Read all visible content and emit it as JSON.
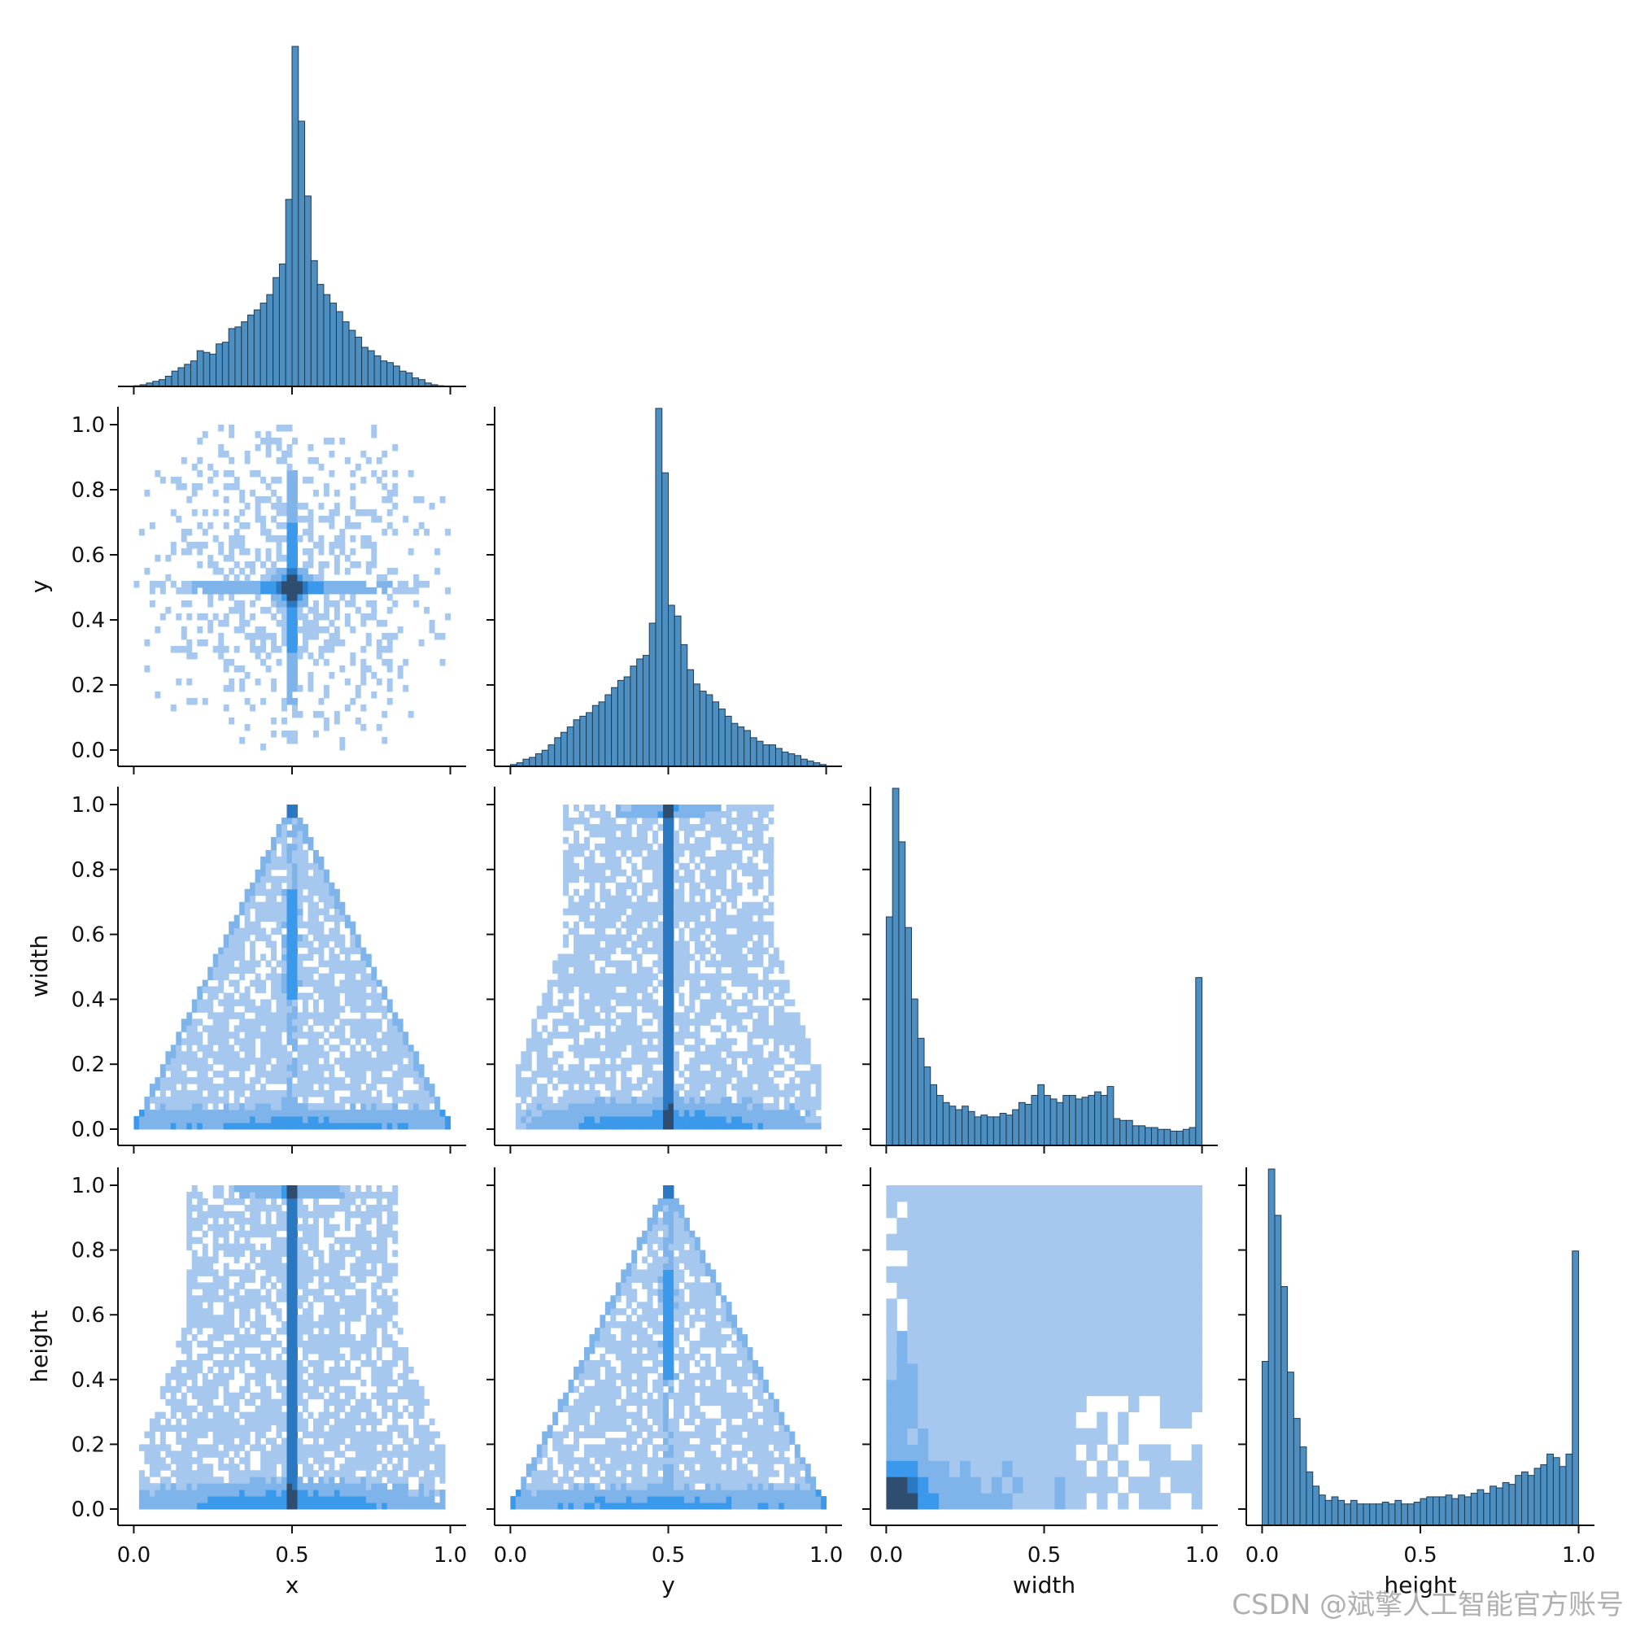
{
  "colors": {
    "bar_fill": "#4c8fc0",
    "bar_edge": "#1f3b55",
    "heat_light": "#a6c8ef",
    "heat_mid": "#3a99ea",
    "heat_dark": "#2f4d6e",
    "axis": "#111111"
  },
  "watermark": "CSDN @斌擎人工智能官方账号",
  "chart_data": {
    "type": "pairplot",
    "corner": true,
    "variables": [
      "x",
      "y",
      "width",
      "height"
    ],
    "axis_labels": {
      "x": "x",
      "y": "y",
      "width": "width",
      "height": "height"
    },
    "xlim": [
      -0.05,
      1.05
    ],
    "tick_values": [
      0.0,
      0.5,
      1.0
    ],
    "tick_labels": [
      "0.0",
      "0.5",
      "1.0"
    ],
    "ytick_values": [
      0.0,
      0.2,
      0.4,
      0.6,
      0.8,
      1.0
    ],
    "ytick_labels": [
      "0.0",
      "0.2",
      "0.4",
      "0.6",
      "0.8",
      "1.0"
    ],
    "diagonal_histograms": {
      "x": {
        "bins": 50,
        "relative_counts": [
          0.002,
          0.005,
          0.01,
          0.015,
          0.02,
          0.03,
          0.045,
          0.055,
          0.065,
          0.075,
          0.105,
          0.1,
          0.095,
          0.125,
          0.13,
          0.17,
          0.175,
          0.19,
          0.21,
          0.225,
          0.245,
          0.27,
          0.32,
          0.36,
          0.55,
          1.0,
          0.78,
          0.56,
          0.37,
          0.3,
          0.27,
          0.245,
          0.22,
          0.19,
          0.165,
          0.145,
          0.115,
          0.105,
          0.09,
          0.075,
          0.07,
          0.06,
          0.045,
          0.04,
          0.025,
          0.02,
          0.01,
          0.005,
          0.002,
          0.001
        ]
      },
      "y": {
        "bins": 50,
        "relative_counts": [
          0.005,
          0.01,
          0.02,
          0.025,
          0.035,
          0.045,
          0.06,
          0.08,
          0.095,
          0.11,
          0.13,
          0.14,
          0.15,
          0.17,
          0.18,
          0.2,
          0.22,
          0.24,
          0.25,
          0.28,
          0.3,
          0.31,
          0.4,
          1.0,
          0.82,
          0.45,
          0.42,
          0.34,
          0.27,
          0.23,
          0.21,
          0.2,
          0.18,
          0.16,
          0.14,
          0.12,
          0.11,
          0.1,
          0.08,
          0.07,
          0.06,
          0.06,
          0.05,
          0.04,
          0.035,
          0.03,
          0.02,
          0.015,
          0.01,
          0.005
        ]
      },
      "width": {
        "bins": 50,
        "relative_counts": [
          0.64,
          1.0,
          0.85,
          0.61,
          0.41,
          0.3,
          0.22,
          0.17,
          0.14,
          0.12,
          0.11,
          0.1,
          0.11,
          0.095,
          0.08,
          0.085,
          0.08,
          0.08,
          0.09,
          0.085,
          0.1,
          0.12,
          0.115,
          0.14,
          0.17,
          0.14,
          0.13,
          0.12,
          0.14,
          0.14,
          0.13,
          0.135,
          0.14,
          0.15,
          0.14,
          0.165,
          0.075,
          0.07,
          0.07,
          0.055,
          0.055,
          0.05,
          0.05,
          0.045,
          0.045,
          0.04,
          0.04,
          0.045,
          0.05,
          0.47
        ]
      },
      "height": {
        "bins": 50,
        "relative_counts": [
          0.46,
          1.0,
          0.87,
          0.67,
          0.43,
          0.3,
          0.22,
          0.15,
          0.11,
          0.085,
          0.07,
          0.08,
          0.07,
          0.06,
          0.07,
          0.06,
          0.06,
          0.06,
          0.06,
          0.065,
          0.06,
          0.07,
          0.06,
          0.06,
          0.065,
          0.075,
          0.08,
          0.08,
          0.08,
          0.085,
          0.075,
          0.085,
          0.08,
          0.09,
          0.1,
          0.09,
          0.11,
          0.105,
          0.12,
          0.115,
          0.14,
          0.15,
          0.14,
          0.16,
          0.17,
          0.2,
          0.19,
          0.165,
          0.2,
          0.77
        ]
      }
    },
    "heatmaps": [
      {
        "row": "y",
        "col": "x",
        "description": "2D histogram; dense cross centered at (0.5, 0.5)"
      },
      {
        "row": "width",
        "col": "x",
        "description": "2D histogram; triangular support, width <= 1 - 2|x - 0.5|, dense near width 0 and along x = 0.5"
      },
      {
        "row": "width",
        "col": "y",
        "description": "2D histogram; dense vertical line at y = 0.5 and dense band near width 0"
      },
      {
        "row": "height",
        "col": "x",
        "description": "2D histogram; dense vertical line at x = 0.5 and dense band near height 0"
      },
      {
        "row": "height",
        "col": "y",
        "description": "2D histogram; triangular support, height <= 1 - 2|y - 0.5|, dense near height 0"
      },
      {
        "row": "height",
        "col": "width",
        "description": "2D histogram; fairly uniform, darkest cell near (0.05, 0.05), sparse in lower-right"
      }
    ]
  }
}
